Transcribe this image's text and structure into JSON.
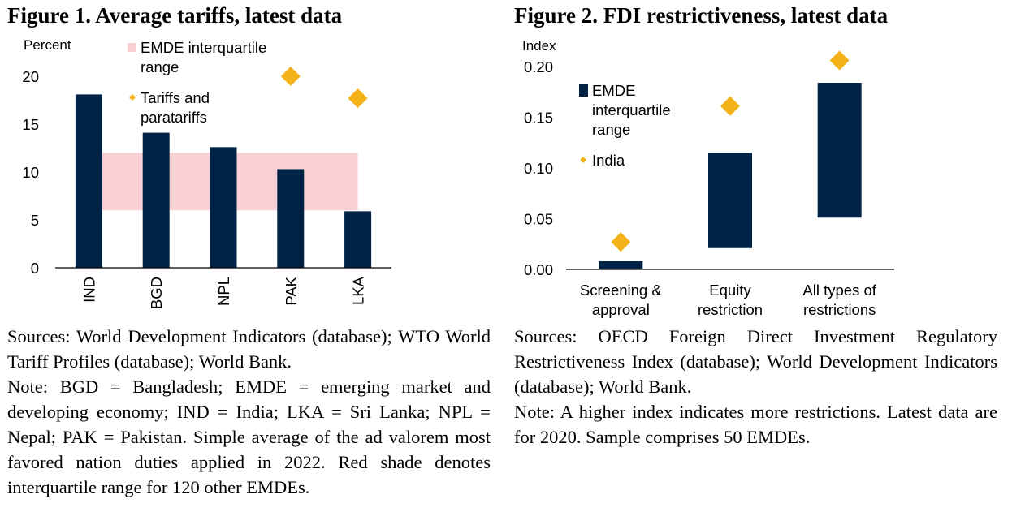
{
  "figure1": {
    "title": "Figure 1. Average tariffs, latest data",
    "sources": "Sources: World Development Indicators (database); WTO World Tariff Profiles (database); World Bank.",
    "note": "Note: BGD = Bangladesh; EMDE = emerging market and developing economy; IND = India; LKA = Sri Lanka; NPL = Nepal; PAK = Pakistan. Simple average of the ad valorem most favored nation duties applied in 2022. Red shade denotes interquartile range for 120 other EMDEs."
  },
  "figure2": {
    "title": "Figure 2. FDI restrictiveness, latest data",
    "sources": "Sources: OECD Foreign Direct Investment Regulatory Restrictiveness Index (database); World Development Indicators (database); World Bank.",
    "note": "Note: A higher index indicates more restrictions. Latest data are for 2020. Sample comprises 50 EMDEs."
  },
  "colors": {
    "bar": "#002345",
    "marker": "#f4b21a",
    "shade": "#f8d0d6",
    "axis": "#000000"
  },
  "chart_data": [
    {
      "type": "bar",
      "title": "Figure 1. Average tariffs, latest data",
      "ylabel": "Percent",
      "ylim": [
        0,
        20
      ],
      "yticks": [
        "0",
        "5",
        "10",
        "15",
        "20"
      ],
      "categories": [
        "IND",
        "BGD",
        "NPL",
        "PAK",
        "LKA"
      ],
      "series": [
        {
          "name": "Tariffs",
          "kind": "bar",
          "values": [
            18.1,
            14.1,
            12.6,
            10.3,
            5.9
          ]
        },
        {
          "name": "Tariffs and paratariffs",
          "kind": "marker",
          "values": [
            null,
            null,
            null,
            20.0,
            17.7
          ]
        }
      ],
      "interquartile_range": {
        "name": "EMDE interquartile range",
        "low": 6.0,
        "high": 12.0
      },
      "legend": [
        {
          "kind": "shade",
          "label_lines": [
            "EMDE interquartile",
            "range"
          ]
        },
        {
          "kind": "marker",
          "label_lines": [
            "Tariffs and",
            "paratariffs"
          ]
        }
      ]
    },
    {
      "type": "bar",
      "title": "Figure 2. FDI restrictiveness, latest data",
      "ylabel": "Index",
      "ylim": [
        0,
        0.2
      ],
      "yticks": [
        "0.00",
        "0.05",
        "0.10",
        "0.15",
        "0.20"
      ],
      "categories": [
        [
          "Screening &",
          "approval"
        ],
        [
          "Equity",
          "restriction"
        ],
        [
          "All types of",
          "restrictions"
        ]
      ],
      "series": [
        {
          "name": "EMDE interquartile range",
          "kind": "floating_bar",
          "low": [
            0.0,
            0.021,
            0.051
          ],
          "high": [
            0.008,
            0.115,
            0.184
          ]
        },
        {
          "name": "India",
          "kind": "marker",
          "values": [
            0.027,
            0.161,
            0.206
          ]
        }
      ],
      "legend": [
        {
          "kind": "bar",
          "label_lines": [
            "EMDE",
            "interquartile",
            "range"
          ]
        },
        {
          "kind": "marker",
          "label_lines": [
            "India"
          ]
        }
      ]
    }
  ]
}
